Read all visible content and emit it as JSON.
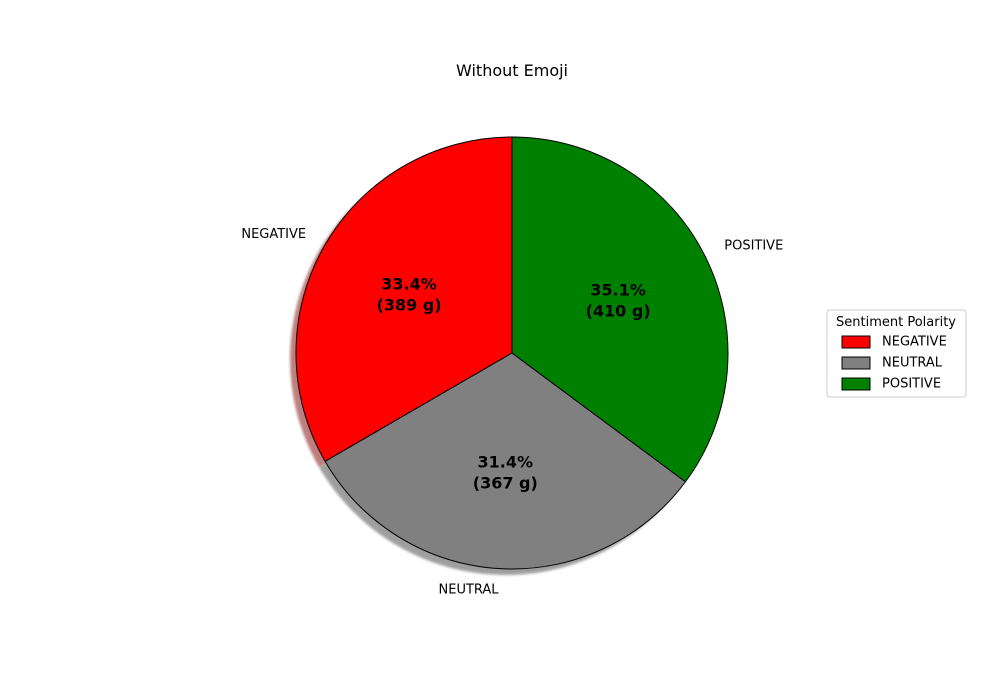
{
  "chart_data": {
    "type": "pie",
    "title": "Without Emoji",
    "categories": [
      "NEGATIVE",
      "NEUTRAL",
      "POSITIVE"
    ],
    "values": [
      389,
      367,
      410
    ],
    "unit": "g",
    "percent_labels": [
      "33.4%",
      "31.4%",
      "35.1%"
    ],
    "value_labels": [
      "(389 g)",
      "(367 g)",
      "(410 g)"
    ],
    "colors": [
      "#ff0000",
      "#808080",
      "#008000"
    ],
    "start_angle_deg": 90,
    "direction": "counterclockwise",
    "shadow": true,
    "legend": {
      "title": "Sentiment Polarity",
      "entries": [
        "NEGATIVE",
        "NEUTRAL",
        "POSITIVE"
      ],
      "placement": "center-right"
    }
  }
}
